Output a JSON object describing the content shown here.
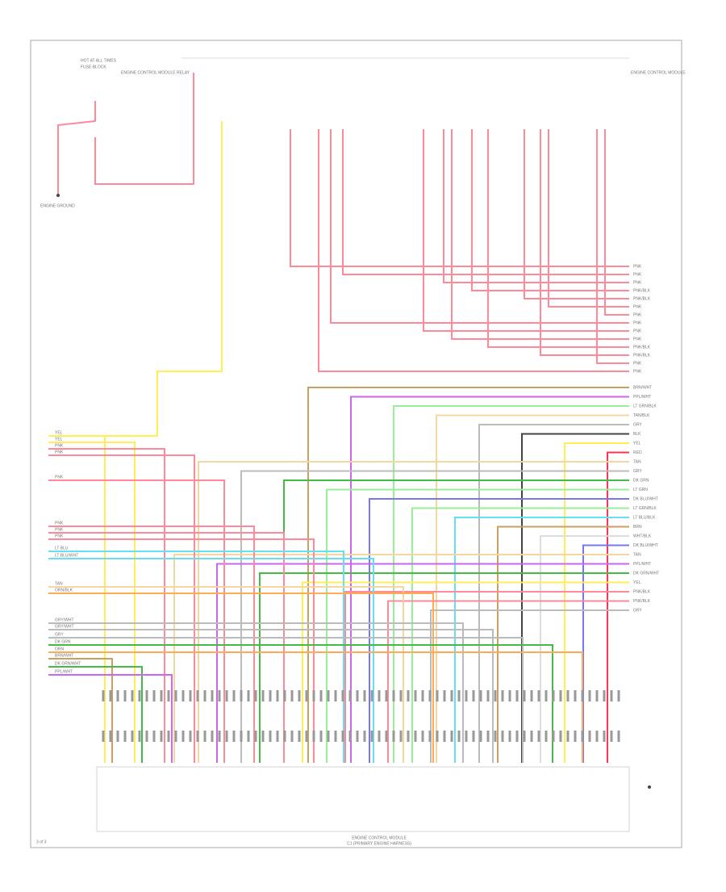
{
  "header": {
    "hot_label": "HOT AT ALL TIMES",
    "fuse_block": "FUSE BLOCK",
    "relay": "ENGINE CONTROL MODULE RELAY",
    "ground": "ENGINE GROUND",
    "ecm_note": "ENGINE CONTROL MODULE"
  },
  "left_wires": [
    "YEL",
    "YEL",
    "PNK",
    "PNK",
    "PNK",
    "PNK",
    "PNK",
    "PNK",
    "LT BLU",
    "LT BLU/WHT",
    "TAN",
    "ORN/BLK",
    "GRY/WHT",
    "GRY/WHT",
    "GRY",
    "DK GRN",
    "ORN",
    "BRN/WHT",
    "DK GRN/WHT",
    "PPL/WHT"
  ],
  "right_wires": [
    "PNK",
    "PNK",
    "PNK",
    "PNK/BLK",
    "PNK/BLK",
    "PNK",
    "PNK",
    "PNK",
    "PNK",
    "PNK",
    "PNK/BLK",
    "PNK/BLK",
    "PNK",
    "PNK",
    "BRN/WHT",
    "PPL/WHT",
    "LT GRN/BLK",
    "TAN/BLK",
    "GRY",
    "BLK",
    "YEL",
    "RED",
    "TAN",
    "GRY",
    "DK GRN",
    "LT GRN",
    "DK BLU/WHT",
    "LT GRN/BLK",
    "LT BLU/BLK",
    "BRN",
    "WHT/BLK",
    "DK BLU/WHT",
    "TAN",
    "PPL/WHT",
    "DK GRN/WHT",
    "YEL",
    "PNK/BLK",
    "PNK/BLK",
    "GRY"
  ],
  "footer": {
    "module": "ENGINE CONTROL MODULE",
    "connector": "C1 (PRIMARY ENGINE HARNESS)",
    "code": "3 of 3"
  }
}
